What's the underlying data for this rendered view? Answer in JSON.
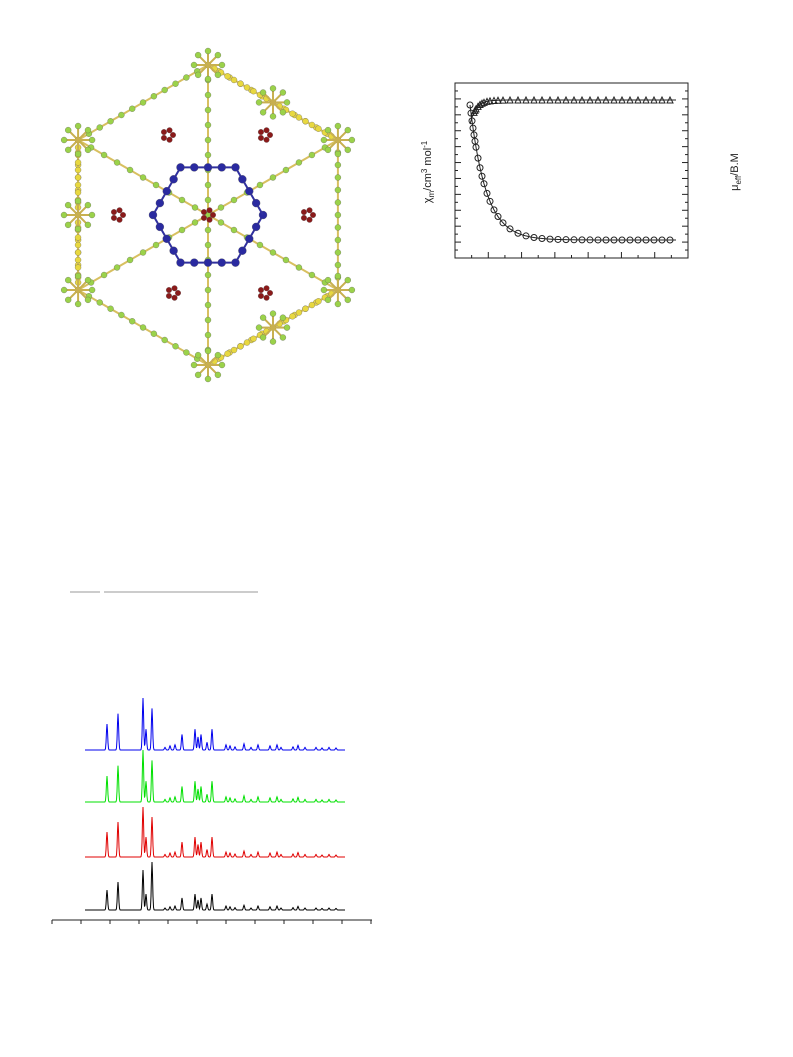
{
  "magnetic_plot": {
    "left_label": [
      "χ",
      "m",
      "/cm",
      "3",
      " mol",
      "-1"
    ],
    "right_label": [
      "μ",
      "eff",
      "/B.M"
    ]
  }
}
